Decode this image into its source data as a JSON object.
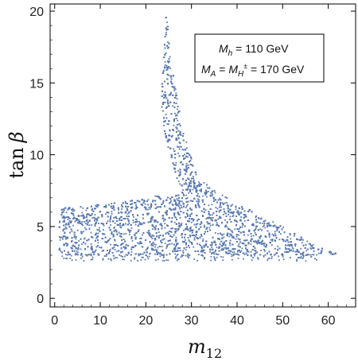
{
  "chart_data": {
    "type": "scatter",
    "title": "",
    "xlabel": {
      "base": "m",
      "sub": "12"
    },
    "ylabel": {
      "text": "tan",
      "symbol": "β"
    },
    "xlim": [
      -1,
      66
    ],
    "ylim": [
      -0.6,
      20.5
    ],
    "xticks": [
      "0",
      "10",
      "20",
      "30",
      "40",
      "50",
      "60"
    ],
    "yticks": [
      "0",
      "5",
      "10",
      "15",
      "20"
    ],
    "point_color": "#5b7bb0",
    "frame_color": "#000000",
    "grid": false,
    "legend_box": {
      "position": "top-right",
      "line1": {
        "sym": "M",
        "sub": "h",
        "rest": " = 110 GeV"
      },
      "line2": {
        "sym1": "M",
        "sub1": "A",
        "eq1": " = ",
        "sym2": "M",
        "sub2": "H",
        "sup2": "±",
        "rest": " = 170 GeV"
      }
    },
    "region": {
      "description": "dense allowed region of (m12, tan beta) scan points",
      "lower_band": {
        "x_range": [
          1,
          58
        ],
        "y_bottom": 3.0,
        "y_top_at_x1": 6.3,
        "y_top_at_x20": 6.9
      },
      "spike": {
        "x_range": [
          23.5,
          35
        ],
        "top_y": 20.0,
        "top_x": 24.5
      },
      "tail": {
        "x_range": [
          40,
          65
        ],
        "points": [
          [
            40,
            6.6
          ],
          [
            45,
            5.8
          ],
          [
            50,
            5.0
          ],
          [
            55,
            4.1
          ],
          [
            60,
            3.3
          ],
          [
            65,
            2.8
          ]
        ]
      },
      "bottom_scatter_y": 2.6
    }
  }
}
